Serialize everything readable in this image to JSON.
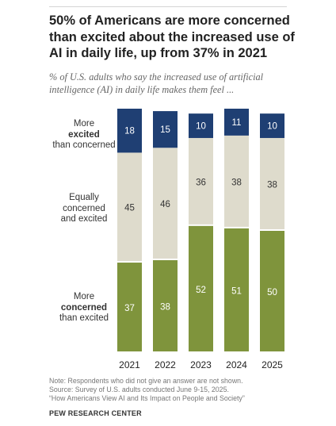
{
  "title": "50% of Americans are more concerned than excited about the increased use of AI in daily life, up from 37% in 2021",
  "subtitle": "% of U.S. adults who say the increased use of artificial intelligence (AI) in daily life makes them feel ...",
  "category_labels": {
    "excited": {
      "pre": "More",
      "bold": "excited",
      "post": "than concerned"
    },
    "equal": {
      "line1": "Equally",
      "line2": "concerned",
      "line3": "and excited"
    },
    "concerned": {
      "pre": "More",
      "bold": "concerned",
      "post": "than excited"
    }
  },
  "notes": {
    "note": "Note: Respondents who did not give an answer are not shown.",
    "source": "Source: Survey of U.S. adults conducted June 9-15, 2025.",
    "report": "“How Americans View AI and Its Impact on People and Society”"
  },
  "org": "PEW RESEARCH CENTER",
  "colors": {
    "excited": "#1f3f73",
    "equal": "#dedbcc",
    "concerned": "#7f943c",
    "label_dark": "#333333",
    "label_light": "#ffffff"
  },
  "chart_data": {
    "type": "bar",
    "stacked": true,
    "normalized_to": 100,
    "categories": [
      "2021",
      "2022",
      "2023",
      "2024",
      "2025"
    ],
    "series": [
      {
        "name": "More concerned than excited",
        "key": "concerned",
        "values": [
          37,
          38,
          52,
          51,
          50
        ]
      },
      {
        "name": "Equally concerned and excited",
        "key": "equal",
        "values": [
          45,
          46,
          36,
          38,
          38
        ]
      },
      {
        "name": "More excited than concerned",
        "key": "excited",
        "values": [
          18,
          15,
          10,
          11,
          10
        ]
      }
    ],
    "grid": false,
    "legend": "left"
  }
}
